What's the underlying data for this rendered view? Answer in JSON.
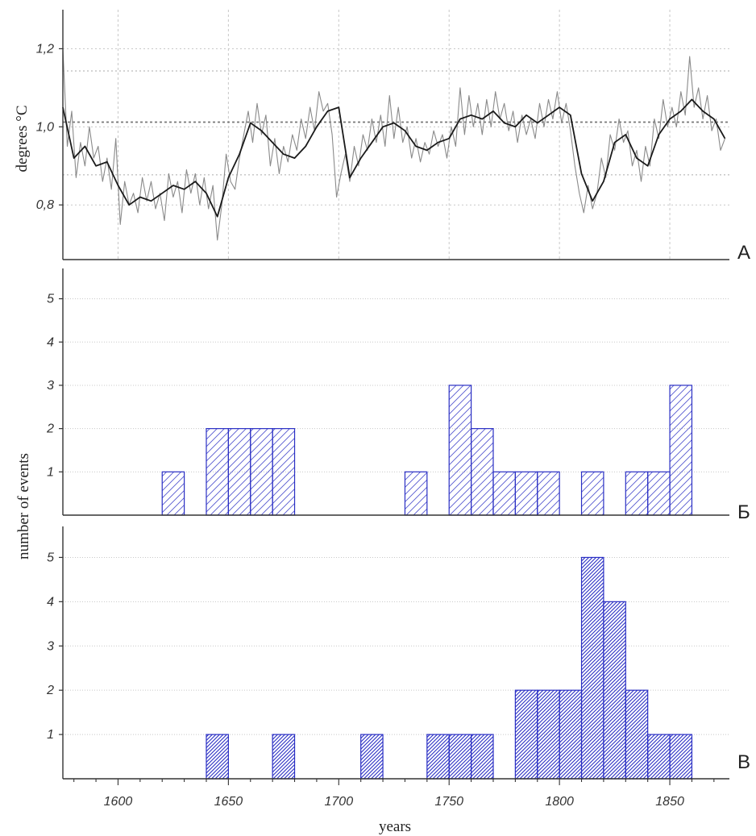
{
  "chart_data": [
    {
      "panel": "А",
      "type": "line",
      "ylabel": "degrees °C",
      "xlim": [
        1575,
        1877
      ],
      "ylim": [
        0.66,
        1.3
      ],
      "yticks": [
        0.8,
        1.0,
        1.2
      ],
      "ytick_labels": [
        "0,8",
        "1,0",
        "1,2"
      ],
      "grid": true,
      "reference_lines": [
        0.877,
        1.012,
        1.143
      ],
      "series": [
        {
          "style": "annual (thin gray)",
          "x": [
            1575,
            1577,
            1579,
            1581,
            1583,
            1585,
            1587,
            1589,
            1591,
            1593,
            1595,
            1597,
            1599,
            1601,
            1603,
            1605,
            1607,
            1609,
            1611,
            1613,
            1615,
            1617,
            1619,
            1621,
            1623,
            1625,
            1627,
            1629,
            1631,
            1633,
            1635,
            1637,
            1639,
            1641,
            1643,
            1645,
            1647,
            1649,
            1651,
            1653,
            1655,
            1657,
            1659,
            1661,
            1663,
            1665,
            1667,
            1669,
            1671,
            1673,
            1675,
            1677,
            1679,
            1681,
            1683,
            1685,
            1687,
            1689,
            1691,
            1693,
            1695,
            1697,
            1699,
            1701,
            1703,
            1705,
            1707,
            1709,
            1711,
            1713,
            1715,
            1717,
            1719,
            1721,
            1723,
            1725,
            1727,
            1729,
            1731,
            1733,
            1735,
            1737,
            1739,
            1741,
            1743,
            1745,
            1747,
            1749,
            1751,
            1753,
            1755,
            1757,
            1759,
            1761,
            1763,
            1765,
            1767,
            1769,
            1771,
            1773,
            1775,
            1777,
            1779,
            1781,
            1783,
            1785,
            1787,
            1789,
            1791,
            1793,
            1795,
            1797,
            1799,
            1801,
            1803,
            1805,
            1807,
            1809,
            1811,
            1813,
            1815,
            1817,
            1819,
            1821,
            1823,
            1825,
            1827,
            1829,
            1831,
            1833,
            1835,
            1837,
            1839,
            1841,
            1843,
            1845,
            1847,
            1849,
            1851,
            1853,
            1855,
            1857,
            1859,
            1861,
            1863,
            1865,
            1867,
            1869,
            1871,
            1873,
            1875
          ],
          "y": [
            1.2,
            0.95,
            1.04,
            0.87,
            0.96,
            0.9,
            1.0,
            0.92,
            0.95,
            0.86,
            0.92,
            0.84,
            0.97,
            0.75,
            0.86,
            0.8,
            0.83,
            0.78,
            0.87,
            0.81,
            0.86,
            0.79,
            0.83,
            0.76,
            0.88,
            0.82,
            0.86,
            0.78,
            0.89,
            0.83,
            0.88,
            0.8,
            0.87,
            0.79,
            0.85,
            0.71,
            0.8,
            0.93,
            0.86,
            0.84,
            0.92,
            0.98,
            1.04,
            0.96,
            1.06,
            0.98,
            1.03,
            0.9,
            0.97,
            0.88,
            0.95,
            0.91,
            0.98,
            0.94,
            1.02,
            0.97,
            1.05,
            0.99,
            1.09,
            1.04,
            1.06,
            0.98,
            0.82,
            0.88,
            0.93,
            0.86,
            0.95,
            0.9,
            0.98,
            0.94,
            1.02,
            0.96,
            1.03,
            0.95,
            1.08,
            0.97,
            1.05,
            0.96,
            1.0,
            0.92,
            0.97,
            0.91,
            0.96,
            0.93,
            0.99,
            0.95,
            0.98,
            0.92,
            1.0,
            0.95,
            1.1,
            0.98,
            1.08,
            1.0,
            1.06,
            0.98,
            1.07,
            1.0,
            1.09,
            1.02,
            1.06,
            0.99,
            1.04,
            0.96,
            1.03,
            0.98,
            1.02,
            0.97,
            1.06,
            1.0,
            1.07,
            1.02,
            1.09,
            1.01,
            1.06,
            0.99,
            0.9,
            0.83,
            0.78,
            0.85,
            0.79,
            0.83,
            0.92,
            0.87,
            0.98,
            0.94,
            1.02,
            0.96,
            0.99,
            0.9,
            0.94,
            0.86,
            0.95,
            0.9,
            1.02,
            0.97,
            1.07,
            1.0,
            1.05,
            1.0,
            1.09,
            1.03,
            1.18,
            1.05,
            1.1,
            1.02,
            1.08,
            0.99,
            1.02,
            0.94,
            0.97
          ]
        },
        {
          "style": "smoothed (thick dark)",
          "x": [
            1575,
            1580,
            1585,
            1590,
            1595,
            1600,
            1605,
            1610,
            1615,
            1620,
            1625,
            1630,
            1635,
            1640,
            1645,
            1650,
            1655,
            1660,
            1665,
            1670,
            1675,
            1680,
            1685,
            1690,
            1695,
            1700,
            1705,
            1710,
            1715,
            1720,
            1725,
            1730,
            1735,
            1740,
            1745,
            1750,
            1755,
            1760,
            1765,
            1770,
            1775,
            1780,
            1785,
            1790,
            1795,
            1800,
            1805,
            1810,
            1815,
            1820,
            1825,
            1830,
            1835,
            1840,
            1845,
            1850,
            1855,
            1860,
            1865,
            1870,
            1875
          ],
          "y": [
            1.05,
            0.92,
            0.95,
            0.9,
            0.91,
            0.85,
            0.8,
            0.82,
            0.81,
            0.83,
            0.85,
            0.84,
            0.86,
            0.83,
            0.77,
            0.87,
            0.93,
            1.01,
            0.99,
            0.96,
            0.93,
            0.92,
            0.95,
            1.0,
            1.04,
            1.05,
            0.87,
            0.92,
            0.96,
            1.0,
            1.01,
            0.99,
            0.95,
            0.94,
            0.96,
            0.97,
            1.02,
            1.03,
            1.02,
            1.04,
            1.01,
            1.0,
            1.03,
            1.01,
            1.03,
            1.05,
            1.03,
            0.88,
            0.81,
            0.86,
            0.96,
            0.98,
            0.92,
            0.9,
            0.98,
            1.02,
            1.04,
            1.07,
            1.04,
            1.02,
            0.97
          ]
        }
      ]
    },
    {
      "panel": "Б",
      "type": "bar",
      "ylabel": "number of events",
      "xlim": [
        1575,
        1877
      ],
      "ylim": [
        0,
        5.7
      ],
      "yticks": [
        1,
        2,
        3,
        4,
        5
      ],
      "ytick_labels": [
        "1",
        "2",
        "3",
        "4",
        "5"
      ],
      "bin_width": 10,
      "grid": true,
      "bins": [
        {
          "start": 1620,
          "count": 1
        },
        {
          "start": 1640,
          "count": 2
        },
        {
          "start": 1650,
          "count": 2
        },
        {
          "start": 1660,
          "count": 2
        },
        {
          "start": 1670,
          "count": 2
        },
        {
          "start": 1730,
          "count": 1
        },
        {
          "start": 1750,
          "count": 3
        },
        {
          "start": 1760,
          "count": 2
        },
        {
          "start": 1770,
          "count": 1
        },
        {
          "start": 1780,
          "count": 1
        },
        {
          "start": 1790,
          "count": 1
        },
        {
          "start": 1810,
          "count": 1
        },
        {
          "start": 1830,
          "count": 1
        },
        {
          "start": 1840,
          "count": 1
        },
        {
          "start": 1850,
          "count": 3
        }
      ]
    },
    {
      "panel": "В",
      "type": "bar",
      "xlabel": "years",
      "xlim": [
        1575,
        1877
      ],
      "ylim": [
        0,
        5.7
      ],
      "yticks": [
        1,
        2,
        3,
        4,
        5
      ],
      "ytick_labels": [
        "1",
        "2",
        "3",
        "4",
        "5"
      ],
      "xticks": [
        1600,
        1650,
        1700,
        1750,
        1800,
        1850
      ],
      "xtick_labels": [
        "1600",
        "1650",
        "1700",
        "1750",
        "1800",
        "1850"
      ],
      "bin_width": 10,
      "grid": true,
      "bins": [
        {
          "start": 1640,
          "count": 1
        },
        {
          "start": 1670,
          "count": 1
        },
        {
          "start": 1710,
          "count": 1
        },
        {
          "start": 1740,
          "count": 1
        },
        {
          "start": 1750,
          "count": 1
        },
        {
          "start": 1760,
          "count": 1
        },
        {
          "start": 1780,
          "count": 2
        },
        {
          "start": 1790,
          "count": 2
        },
        {
          "start": 1800,
          "count": 2
        },
        {
          "start": 1810,
          "count": 5
        },
        {
          "start": 1820,
          "count": 4
        },
        {
          "start": 1830,
          "count": 2
        },
        {
          "start": 1840,
          "count": 1
        },
        {
          "start": 1850,
          "count": 1
        }
      ]
    }
  ],
  "colors": {
    "bar_stroke": "#2a2fc4",
    "hatch": "#2a2fc4",
    "annual_line": "#8a8a8a",
    "smooth_line": "#1a1a1a",
    "grid": "#c8c8c8",
    "axis": "#333333"
  }
}
